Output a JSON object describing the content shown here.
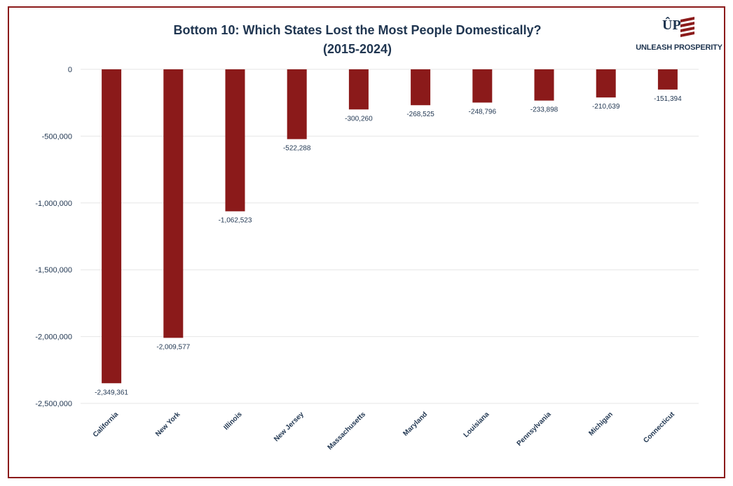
{
  "header": {
    "title_line1": "Bottom 10: Which States Lost the Most People Domestically?",
    "title_line2": "(2015-2024)"
  },
  "logo": {
    "mark": "ÛP",
    "text": "UNLEASH PROSPERITY",
    "icon": "flag-stripes-icon"
  },
  "colors": {
    "bar": "#8b1a1a",
    "frame": "#8b1a1a",
    "title": "#1f3550",
    "axis_text": "#1f3550",
    "grid": "#e6e6e6"
  },
  "chart_data": {
    "type": "bar",
    "title": "Bottom 10: Which States Lost the Most People Domestically? (2015-2024)",
    "xlabel": "",
    "ylabel": "",
    "categories": [
      "California",
      "New York",
      "Illinois",
      "New Jersey",
      "Massachusetts",
      "Maryland",
      "Louisiana",
      "Pennsylvania",
      "Michigan",
      "Connecticut"
    ],
    "values": [
      -2349361,
      -2009577,
      -1062523,
      -522288,
      -300260,
      -268525,
      -248796,
      -233898,
      -210639,
      -151394
    ],
    "data_labels": [
      "-2,349,361",
      "-2,009,577",
      "-1,062,523",
      "-522,288",
      "-300,260",
      "-268,525",
      "-248,796",
      "-233,898",
      "-210,639",
      "-151,394"
    ],
    "ylim": [
      -2500000,
      0
    ],
    "yticks": [
      0,
      -500000,
      -1000000,
      -1500000,
      -2000000,
      -2500000
    ],
    "ytick_labels": [
      "0",
      "-500,000",
      "-1,000,000",
      "-1,500,000",
      "-2,000,000",
      "-2,500,000"
    ],
    "grid": true,
    "legend": "none"
  }
}
